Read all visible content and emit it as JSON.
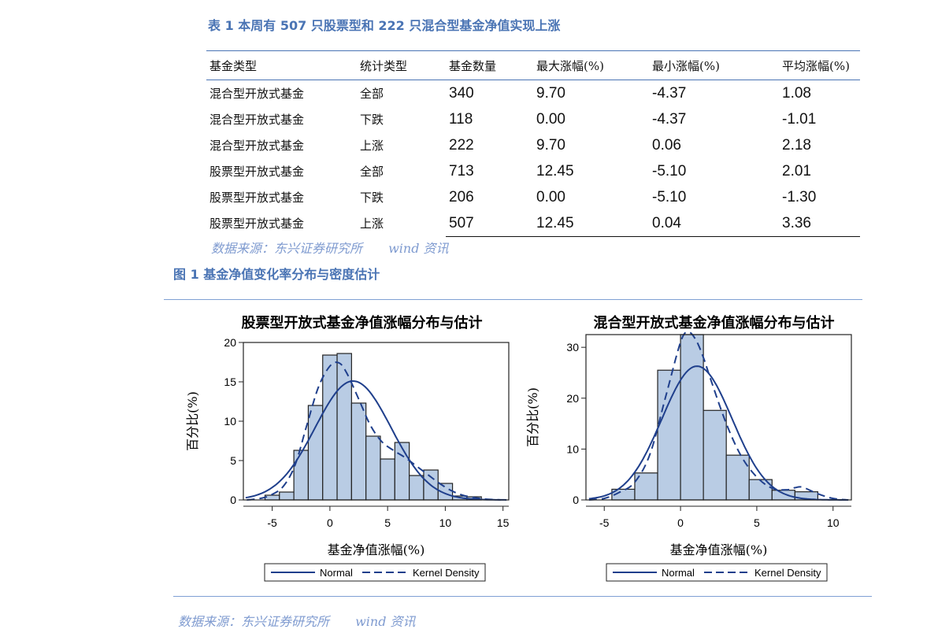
{
  "table": {
    "caption": "表 1 本周有 507 只股票型和 222 只混合型基金净值实现上涨",
    "headers": [
      "基金类型",
      "统计类型",
      "基金数量",
      "最大涨幅(%)",
      "最小涨幅(%)",
      "平均涨幅(%)"
    ],
    "rows": [
      [
        "混合型开放式基金",
        "全部",
        "340",
        "9.70",
        "-4.37",
        "1.08"
      ],
      [
        "混合型开放式基金",
        "下跌",
        "118",
        "0.00",
        "-4.37",
        "-1.01"
      ],
      [
        "混合型开放式基金",
        "上涨",
        "222",
        "9.70",
        "0.06",
        "2.18"
      ],
      [
        "股票型开放式基金",
        "全部",
        "713",
        "12.45",
        "-5.10",
        "2.01"
      ],
      [
        "股票型开放式基金",
        "下跌",
        "206",
        "0.00",
        "-5.10",
        "-1.30"
      ],
      [
        "股票型开放式基金",
        "上涨",
        "507",
        "12.45",
        "0.04",
        "3.36"
      ]
    ],
    "source": [
      "数据来源：东兴证券研究所",
      "wind 资讯"
    ]
  },
  "figure": {
    "caption": "图 1 基金净值变化率分布与密度估计",
    "source": [
      "数据来源：东兴证券研究所",
      "wind 资讯"
    ]
  },
  "colors": {
    "bar_fill": "#b9cce4",
    "curve": "#1f3f8c",
    "caption": "#4a74b4"
  },
  "chart_data": [
    {
      "type": "bar",
      "title": "股票型开放式基金净值涨幅分布与估计",
      "xlabel": "基金净值涨幅(%)",
      "ylabel": "百分比(%)",
      "bin_width": 1.25,
      "bin_starts": [
        -5.625,
        -4.375,
        -3.125,
        -1.875,
        -0.625,
        0.625,
        1.875,
        3.125,
        4.375,
        5.625,
        6.875,
        8.125,
        9.375,
        10.625,
        11.875
      ],
      "values": [
        0.6,
        1.0,
        6.3,
        12.0,
        18.4,
        18.6,
        12.3,
        8.1,
        5.2,
        7.3,
        3.1,
        3.8,
        2.1,
        0.5,
        0.4
      ],
      "xlim": [
        -7.5,
        15.5
      ],
      "ylim": [
        0,
        20
      ],
      "xticks": [
        -5,
        0,
        5,
        10,
        15
      ],
      "yticks": [
        0,
        5,
        10,
        15,
        20
      ],
      "normal": {
        "mean": 2.01,
        "sd": 3.3,
        "peak": 15.1
      },
      "kernel_density": {
        "x": [
          -7.2,
          -6,
          -5,
          -4,
          -3,
          -2,
          -1,
          0,
          0.8,
          1.5,
          2.5,
          3.5,
          4.5,
          5.5,
          6.5,
          7.5,
          8.5,
          9.5,
          10.5,
          11.5,
          12.5,
          13.5,
          14.8
        ],
        "y": [
          0,
          0.2,
          0.7,
          1.8,
          4.5,
          9.5,
          14.3,
          17.0,
          17.4,
          16.0,
          12.8,
          9.5,
          7.4,
          6.3,
          5.4,
          4.3,
          3.2,
          2.1,
          1.2,
          0.6,
          0.3,
          0.1,
          0
        ]
      },
      "legend": [
        "Normal",
        "Kernel Density"
      ]
    },
    {
      "type": "bar",
      "title": "混合型开放式基金净值涨幅分布与估计",
      "xlabel": "基金净值涨幅(%)",
      "ylabel": "百分比(%)",
      "bin_width": 1.5,
      "bin_starts": [
        -4.5,
        -3.0,
        -1.5,
        0.0,
        1.5,
        3.0,
        4.5,
        6.0,
        7.5
      ],
      "values": [
        2.1,
        5.3,
        25.5,
        32.5,
        17.6,
        8.8,
        4.0,
        1.9,
        1.6
      ],
      "xlim": [
        -6.2,
        11.2
      ],
      "ylim": [
        0,
        32.5
      ],
      "xticks": [
        -5,
        0,
        5,
        10
      ],
      "yticks": [
        0,
        10,
        20,
        30
      ],
      "normal": {
        "mean": 1.08,
        "sd": 2.3,
        "peak": 26.3
      },
      "kernel_density": {
        "x": [
          -6.0,
          -5.0,
          -4.0,
          -3.0,
          -2.0,
          -1.0,
          0.0,
          0.5,
          1.0,
          1.5,
          2.0,
          3.0,
          4.0,
          5.0,
          6.0,
          7.0,
          7.5,
          8.0,
          9.0,
          10.0,
          11.0
        ],
        "y": [
          0,
          0.3,
          1.5,
          3.5,
          9.0,
          20.0,
          31.0,
          33.0,
          31.5,
          28.0,
          23.5,
          15.0,
          8.5,
          4.5,
          2.3,
          2.0,
          2.4,
          2.5,
          1.2,
          0.3,
          0
        ]
      },
      "legend": [
        "Normal",
        "Kernel Density"
      ]
    }
  ]
}
